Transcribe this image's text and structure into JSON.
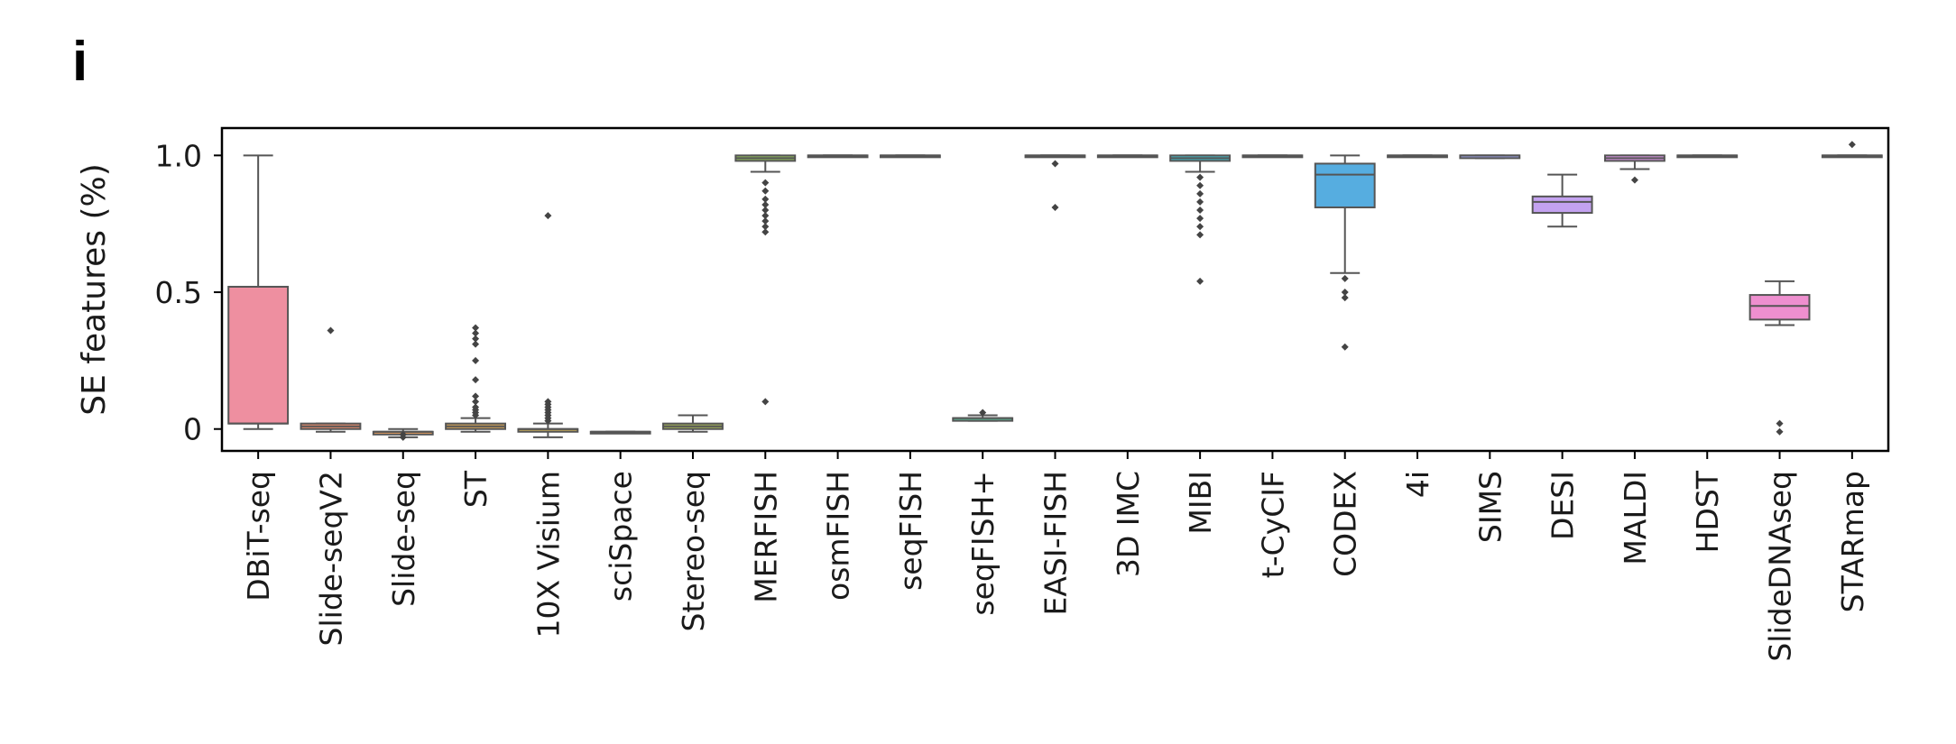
{
  "panel_label": "i",
  "chart_data": {
    "type": "box",
    "title": "",
    "xlabel": "",
    "ylabel": "SE features (%)",
    "ylim": [
      -0.08,
      1.1
    ],
    "yticks": [
      {
        "value": 0,
        "label": "0"
      },
      {
        "value": 0.5,
        "label": "0.5"
      },
      {
        "value": 1.0,
        "label": "1.0"
      }
    ],
    "categories": [
      "DBiT-seq",
      "Slide-seqV2",
      "Slide-seq",
      "ST",
      "10X Visium",
      "sciSpace",
      "Stereo-seq",
      "MERFISH",
      "osmFISH",
      "seqFISH",
      "seqFISH+",
      "EASI-FISH",
      "3D IMC",
      "MIBI",
      "t-CyCIF",
      "CODEX",
      "4i",
      "SIMS",
      "DESI",
      "MALDI",
      "HDST",
      "SlideDNAseq",
      "STARmap"
    ],
    "boxes": [
      {
        "name": "DBiT-seq",
        "color": "#ee8fa0",
        "whisker_low": 0.0,
        "q1": 0.02,
        "median": 0.02,
        "q3": 0.52,
        "whisker_high": 1.0,
        "outliers": []
      },
      {
        "name": "Slide-seqV2",
        "color": "#ee8f6e",
        "whisker_low": -0.01,
        "q1": 0.0,
        "median": 0.01,
        "q3": 0.02,
        "whisker_high": 0.02,
        "outliers": [
          0.36
        ]
      },
      {
        "name": "Slide-seq",
        "color": "#e8a060",
        "whisker_low": -0.03,
        "q1": -0.02,
        "median": -0.01,
        "q3": -0.01,
        "whisker_high": 0.0,
        "outliers": [
          -0.02,
          -0.03
        ]
      },
      {
        "name": "ST",
        "color": "#d9a85a",
        "whisker_low": -0.01,
        "q1": 0.0,
        "median": 0.01,
        "q3": 0.02,
        "whisker_high": 0.04,
        "outliers": [
          0.37,
          0.35,
          0.33,
          0.31,
          0.25,
          0.18,
          0.12,
          0.1,
          0.08,
          0.07,
          0.06,
          0.05
        ]
      },
      {
        "name": "10X Visium",
        "color": "#c8ab5a",
        "whisker_low": -0.03,
        "q1": -0.01,
        "median": 0.0,
        "q3": 0.0,
        "whisker_high": 0.02,
        "outliers": [
          0.78,
          0.1,
          0.09,
          0.08,
          0.07,
          0.06,
          0.05,
          0.04,
          0.03
        ]
      },
      {
        "name": "sciSpace",
        "color": "#b5af58",
        "whisker_low": -0.01,
        "q1": -0.01,
        "median": -0.01,
        "q3": -0.01,
        "whisker_high": -0.01,
        "outliers": []
      },
      {
        "name": "Stereo-seq",
        "color": "#a3b25a",
        "whisker_low": -0.01,
        "q1": 0.0,
        "median": 0.01,
        "q3": 0.02,
        "whisker_high": 0.05,
        "outliers": []
      },
      {
        "name": "MERFISH",
        "color": "#8eb65c",
        "whisker_low": 0.94,
        "q1": 0.98,
        "median": 0.99,
        "q3": 1.0,
        "whisker_high": 1.0,
        "outliers": [
          0.9,
          0.87,
          0.84,
          0.82,
          0.8,
          0.78,
          0.76,
          0.74,
          0.72,
          0.1
        ]
      },
      {
        "name": "osmFISH",
        "color": "#6cb86a",
        "whisker_low": 1.0,
        "q1": 1.0,
        "median": 1.0,
        "q3": 1.0,
        "whisker_high": 1.0,
        "outliers": []
      },
      {
        "name": "seqFISH",
        "color": "#5fba82",
        "whisker_low": 1.0,
        "q1": 1.0,
        "median": 1.0,
        "q3": 1.0,
        "whisker_high": 1.0,
        "outliers": []
      },
      {
        "name": "seqFISH+",
        "color": "#5db895",
        "whisker_low": 0.03,
        "q1": 0.03,
        "median": 0.04,
        "q3": 0.04,
        "whisker_high": 0.05,
        "outliers": [
          0.06
        ]
      },
      {
        "name": "EASI-FISH",
        "color": "#5cb7a6",
        "whisker_low": 1.0,
        "q1": 1.0,
        "median": 1.0,
        "q3": 1.0,
        "whisker_high": 1.0,
        "outliers": [
          0.97,
          0.81
        ]
      },
      {
        "name": "3D IMC",
        "color": "#5bb5b5",
        "whisker_low": 1.0,
        "q1": 1.0,
        "median": 1.0,
        "q3": 1.0,
        "whisker_high": 1.0,
        "outliers": []
      },
      {
        "name": "MIBI",
        "color": "#44b1bd",
        "whisker_low": 0.94,
        "q1": 0.98,
        "median": 0.99,
        "q3": 1.0,
        "whisker_high": 1.0,
        "outliers": [
          0.92,
          0.89,
          0.86,
          0.83,
          0.8,
          0.77,
          0.74,
          0.71,
          0.54
        ]
      },
      {
        "name": "t-CyCIF",
        "color": "#52b4c8",
        "whisker_low": 1.0,
        "q1": 1.0,
        "median": 1.0,
        "q3": 1.0,
        "whisker_high": 1.0,
        "outliers": []
      },
      {
        "name": "CODEX",
        "color": "#56ade0",
        "whisker_low": 0.57,
        "q1": 0.81,
        "median": 0.93,
        "q3": 0.97,
        "whisker_high": 1.0,
        "outliers": [
          0.55,
          0.5,
          0.48,
          0.3
        ]
      },
      {
        "name": "4i",
        "color": "#7faee8",
        "whisker_low": 1.0,
        "q1": 1.0,
        "median": 1.0,
        "q3": 1.0,
        "whisker_high": 1.0,
        "outliers": []
      },
      {
        "name": "SIMS",
        "color": "#a2a7ec",
        "whisker_low": 0.99,
        "q1": 0.99,
        "median": 1.0,
        "q3": 1.0,
        "whisker_high": 1.0,
        "outliers": []
      },
      {
        "name": "DESI",
        "color": "#c3a2f0",
        "whisker_low": 0.74,
        "q1": 0.79,
        "median": 0.83,
        "q3": 0.85,
        "whisker_high": 0.93,
        "outliers": []
      },
      {
        "name": "MALDI",
        "color": "#dc97e8",
        "whisker_low": 0.95,
        "q1": 0.98,
        "median": 0.99,
        "q3": 1.0,
        "whisker_high": 1.0,
        "outliers": [
          0.91
        ]
      },
      {
        "name": "HDST",
        "color": "#e896dc",
        "whisker_low": 1.0,
        "q1": 1.0,
        "median": 1.0,
        "q3": 1.0,
        "whisker_high": 1.0,
        "outliers": []
      },
      {
        "name": "SlideDNAseq",
        "color": "#ee8fcf",
        "whisker_low": 0.38,
        "q1": 0.4,
        "median": 0.45,
        "q3": 0.49,
        "whisker_high": 0.54,
        "outliers": [
          0.02,
          -0.01
        ]
      },
      {
        "name": "STARmap",
        "color": "#ef90b8",
        "whisker_low": 1.0,
        "q1": 1.0,
        "median": 1.0,
        "q3": 1.0,
        "whisker_high": 1.0,
        "outliers": [
          1.04
        ]
      }
    ]
  }
}
